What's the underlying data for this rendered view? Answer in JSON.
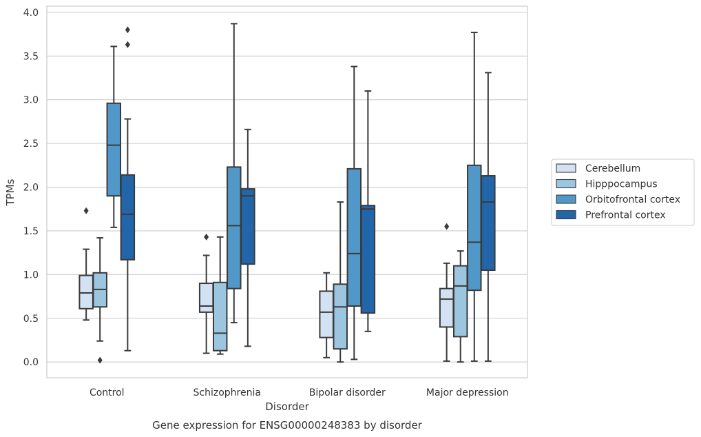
{
  "chart_data": {
    "type": "box",
    "caption": "Gene expression for ENSG00000248383 by disorder",
    "xlabel": "Disorder",
    "ylabel": "TPMs",
    "ylim": [
      -0.18,
      4.07
    ],
    "yticks": [
      0.0,
      0.5,
      1.0,
      1.5,
      2.0,
      2.5,
      3.0,
      3.5,
      4.0
    ],
    "ytick_labels": [
      "0.0",
      "0.5",
      "1.0",
      "1.5",
      "2.0",
      "2.5",
      "3.0",
      "3.5",
      "4.0"
    ],
    "grid": "horizontal",
    "legend_position": "right",
    "categories": [
      "Control",
      "Schizophrenia",
      "Bipolar disorder",
      "Major depression"
    ],
    "series": [
      {
        "name": "Cerebellum",
        "color": "#d2e2f2",
        "boxes": [
          {
            "whislo": 0.48,
            "q1": 0.61,
            "med": 0.79,
            "q3": 0.99,
            "whishi": 1.29,
            "fliers": [
              1.73
            ]
          },
          {
            "whislo": 0.1,
            "q1": 0.57,
            "med": 0.64,
            "q3": 0.9,
            "whishi": 1.22,
            "fliers": [
              1.43
            ]
          },
          {
            "whislo": 0.05,
            "q1": 0.28,
            "med": 0.57,
            "q3": 0.81,
            "whishi": 1.02,
            "fliers": []
          },
          {
            "whislo": 0.01,
            "q1": 0.4,
            "med": 0.72,
            "q3": 0.84,
            "whishi": 1.13,
            "fliers": [
              1.55
            ]
          }
        ]
      },
      {
        "name": "Hipppocampus",
        "color": "#9cc6e0",
        "boxes": [
          {
            "whislo": 0.24,
            "q1": 0.63,
            "med": 0.83,
            "q3": 1.02,
            "whishi": 1.42,
            "fliers": [
              0.02
            ]
          },
          {
            "whislo": 0.09,
            "q1": 0.13,
            "med": 0.33,
            "q3": 0.91,
            "whishi": 1.43,
            "fliers": []
          },
          {
            "whislo": 0.0,
            "q1": 0.15,
            "med": 0.63,
            "q3": 0.89,
            "whishi": 1.83,
            "fliers": []
          },
          {
            "whislo": 0.0,
            "q1": 0.29,
            "med": 0.87,
            "q3": 1.1,
            "whishi": 1.27,
            "fliers": []
          }
        ]
      },
      {
        "name": "Orbitofrontal cortex",
        "color": "#5197c7",
        "boxes": [
          {
            "whislo": 1.54,
            "q1": 1.9,
            "med": 2.48,
            "q3": 2.96,
            "whishi": 3.61,
            "fliers": []
          },
          {
            "whislo": 0.45,
            "q1": 0.84,
            "med": 1.56,
            "q3": 2.23,
            "whishi": 3.87,
            "fliers": []
          },
          {
            "whislo": 0.03,
            "q1": 0.64,
            "med": 1.24,
            "q3": 2.21,
            "whishi": 3.38,
            "fliers": []
          },
          {
            "whislo": 0.01,
            "q1": 0.82,
            "med": 1.37,
            "q3": 2.25,
            "whishi": 3.77,
            "fliers": []
          }
        ]
      },
      {
        "name": "Prefrontal cortex",
        "color": "#2265a8",
        "boxes": [
          {
            "whislo": 0.13,
            "q1": 1.17,
            "med": 1.69,
            "q3": 2.14,
            "whishi": 2.78,
            "fliers": [
              3.63,
              3.8
            ]
          },
          {
            "whislo": 0.18,
            "q1": 1.12,
            "med": 1.9,
            "q3": 1.98,
            "whishi": 2.66,
            "fliers": []
          },
          {
            "whislo": 0.35,
            "q1": 0.56,
            "med": 1.75,
            "q3": 1.79,
            "whishi": 3.1,
            "fliers": []
          },
          {
            "whislo": 0.01,
            "q1": 1.05,
            "med": 1.83,
            "q3": 2.13,
            "whishi": 3.31,
            "fliers": []
          }
        ]
      }
    ],
    "colors": {
      "frame": "#cccccc",
      "grid": "#cccccc",
      "line": "#3a3a3a",
      "text": "#333333"
    }
  }
}
